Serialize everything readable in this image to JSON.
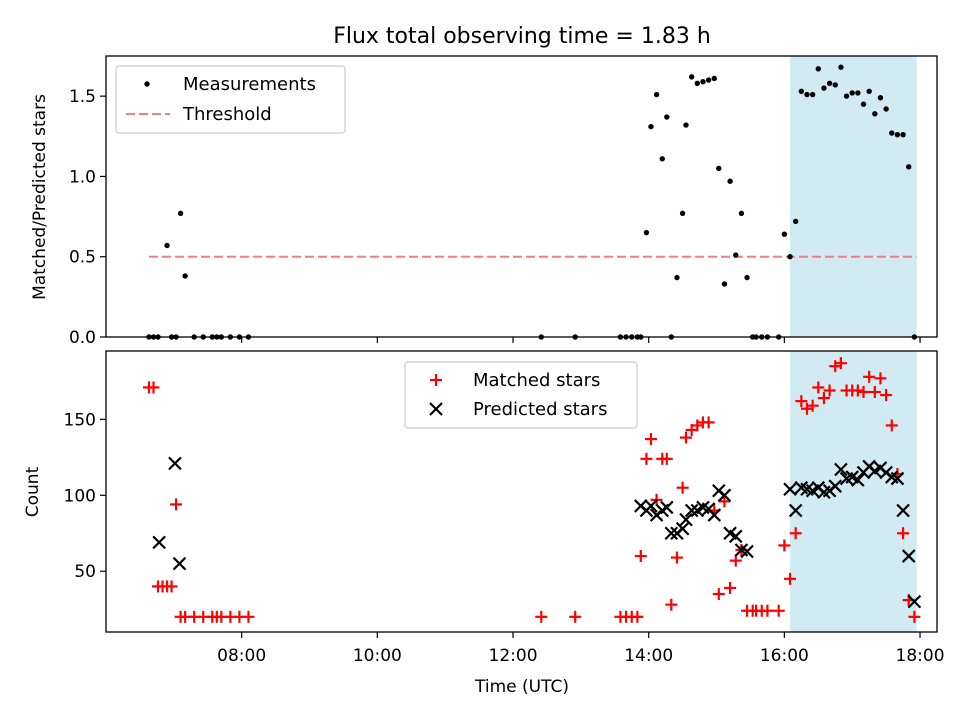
{
  "chart_data": [
    {
      "type": "scatter",
      "title": "Flux total observing time = 1.83 h",
      "xlabel": "",
      "ylabel": "Matched/Predicted stars",
      "xlim": [
        "06:00",
        "18:15"
      ],
      "ylim": [
        0,
        1.75
      ],
      "yticks": [
        "0.0",
        "0.5",
        "1.0",
        "1.5"
      ],
      "legend_position": "top-left",
      "highlight_range": [
        "16:05",
        "17:57"
      ],
      "colors": {
        "measurements": "#000000",
        "threshold": "#f08080",
        "highlight": "#add8e6"
      },
      "series": [
        {
          "name": "Measurements",
          "x": [
            "06:38",
            "06:42",
            "06:46",
            "06:54",
            "06:58",
            "07:02",
            "07:06",
            "07:10",
            "07:18",
            "07:26",
            "07:34",
            "07:38",
            "07:42",
            "07:50",
            "07:58",
            "08:06",
            "12:25",
            "12:55",
            "13:35",
            "13:40",
            "13:45",
            "13:50",
            "13:53",
            "13:58",
            "14:02",
            "14:07",
            "14:12",
            "14:16",
            "14:20",
            "14:25",
            "14:30",
            "14:33",
            "14:38",
            "14:43",
            "14:48",
            "14:53",
            "14:58",
            "15:02",
            "15:07",
            "15:12",
            "15:17",
            "15:22",
            "15:27",
            "15:32",
            "15:35",
            "15:40",
            "15:45",
            "15:55",
            "16:00",
            "16:05",
            "16:10",
            "16:15",
            "16:20",
            "16:25",
            "16:30",
            "16:35",
            "16:40",
            "16:45",
            "16:50",
            "16:55",
            "17:00",
            "17:05",
            "17:10",
            "17:15",
            "17:20",
            "17:25",
            "17:30",
            "17:35",
            "17:40",
            "17:45",
            "17:50",
            "17:55"
          ],
          "y": [
            0,
            0,
            0,
            0.57,
            0,
            0,
            0.77,
            0.38,
            0,
            0,
            0,
            0,
            0,
            0,
            0,
            0,
            0,
            0,
            0,
            0,
            0,
            0,
            0,
            0.65,
            1.31,
            1.51,
            1.11,
            1.37,
            0,
            0.37,
            0.77,
            1.32,
            1.62,
            1.58,
            1.59,
            1.6,
            1.61,
            1.05,
            0.33,
            0.97,
            0.51,
            0.77,
            0.37,
            0,
            0,
            0,
            0,
            0,
            0.64,
            0.5,
            0.72,
            1.53,
            1.51,
            1.51,
            1.67,
            1.55,
            1.58,
            1.57,
            1.68,
            1.5,
            1.52,
            1.52,
            1.45,
            1.53,
            1.39,
            1.49,
            1.42,
            1.27,
            1.26,
            1.26,
            1.06,
            0
          ]
        },
        {
          "name": "Threshold",
          "x": [
            "06:38",
            "17:57"
          ],
          "y": [
            0.5,
            0.5
          ]
        }
      ]
    },
    {
      "type": "scatter",
      "title": "",
      "xlabel": "Time (UTC)",
      "ylabel": "Count",
      "xlim": [
        "06:00",
        "18:15"
      ],
      "ylim": [
        10,
        195
      ],
      "yticks": [
        "50",
        "100",
        "150"
      ],
      "xticks": [
        "08:00",
        "10:00",
        "12:00",
        "14:00",
        "16:00",
        "18:00"
      ],
      "legend_position": "top-center",
      "highlight_range": [
        "16:05",
        "17:57"
      ],
      "colors": {
        "matched": "#ff0000",
        "predicted": "#000000",
        "highlight": "#add8e6"
      },
      "series": [
        {
          "name": "Matched stars",
          "x": [
            "06:38",
            "06:42",
            "06:46",
            "06:50",
            "06:54",
            "06:58",
            "07:02",
            "07:06",
            "07:10",
            "07:18",
            "07:26",
            "07:34",
            "07:38",
            "07:42",
            "07:50",
            "07:58",
            "08:06",
            "12:25",
            "12:55",
            "13:35",
            "13:40",
            "13:45",
            "13:50",
            "13:53",
            "13:58",
            "14:02",
            "14:07",
            "14:12",
            "14:16",
            "14:20",
            "14:25",
            "14:30",
            "14:33",
            "14:38",
            "14:43",
            "14:48",
            "14:53",
            "14:58",
            "15:02",
            "15:07",
            "15:12",
            "15:17",
            "15:22",
            "15:27",
            "15:32",
            "15:35",
            "15:40",
            "15:45",
            "15:55",
            "16:00",
            "16:05",
            "16:10",
            "16:15",
            "16:20",
            "16:25",
            "16:30",
            "16:35",
            "16:40",
            "16:45",
            "16:50",
            "16:55",
            "17:00",
            "17:05",
            "17:10",
            "17:15",
            "17:20",
            "17:25",
            "17:30",
            "17:35",
            "17:40",
            "17:45",
            "17:50",
            "17:55"
          ],
          "y": [
            171,
            171,
            40,
            40,
            40,
            40,
            94,
            20,
            20,
            20,
            20,
            20,
            20,
            20,
            20,
            20,
            20,
            20,
            20,
            20,
            20,
            20,
            20,
            60,
            124,
            137,
            97,
            124,
            124,
            28,
            59,
            105,
            138,
            143,
            146,
            148,
            148,
            90,
            35,
            96,
            39,
            57,
            64,
            24,
            24,
            24,
            24,
            24,
            24,
            67,
            45,
            75,
            162,
            157,
            159,
            171,
            164,
            169,
            185,
            187,
            169,
            169,
            169,
            168,
            178,
            168,
            177,
            166,
            146,
            114,
            75,
            31,
            20
          ]
        },
        {
          "name": "Predicted stars",
          "x": [
            "06:47",
            "07:01",
            "07:05",
            "13:53",
            "13:58",
            "14:02",
            "14:07",
            "14:12",
            "14:16",
            "14:20",
            "14:25",
            "14:30",
            "14:33",
            "14:38",
            "14:43",
            "14:48",
            "14:53",
            "14:58",
            "15:02",
            "15:07",
            "15:12",
            "15:17",
            "15:22",
            "15:27",
            "16:05",
            "16:10",
            "16:15",
            "16:20",
            "16:25",
            "16:30",
            "16:35",
            "16:40",
            "16:45",
            "16:50",
            "16:55",
            "17:00",
            "17:05",
            "17:10",
            "17:15",
            "17:20",
            "17:25",
            "17:30",
            "17:35",
            "17:40",
            "17:45",
            "17:50",
            "17:55"
          ],
          "y": [
            69,
            121,
            55,
            93,
            90,
            93,
            87,
            90,
            92,
            75,
            75,
            78,
            84,
            90,
            90,
            92,
            91,
            87,
            103,
            100,
            75,
            73,
            64,
            63,
            104,
            90,
            105,
            104,
            103,
            105,
            102,
            103,
            106,
            117,
            111,
            112,
            110,
            115,
            119,
            116,
            118,
            115,
            112,
            111,
            90,
            60,
            30
          ]
        }
      ]
    }
  ]
}
